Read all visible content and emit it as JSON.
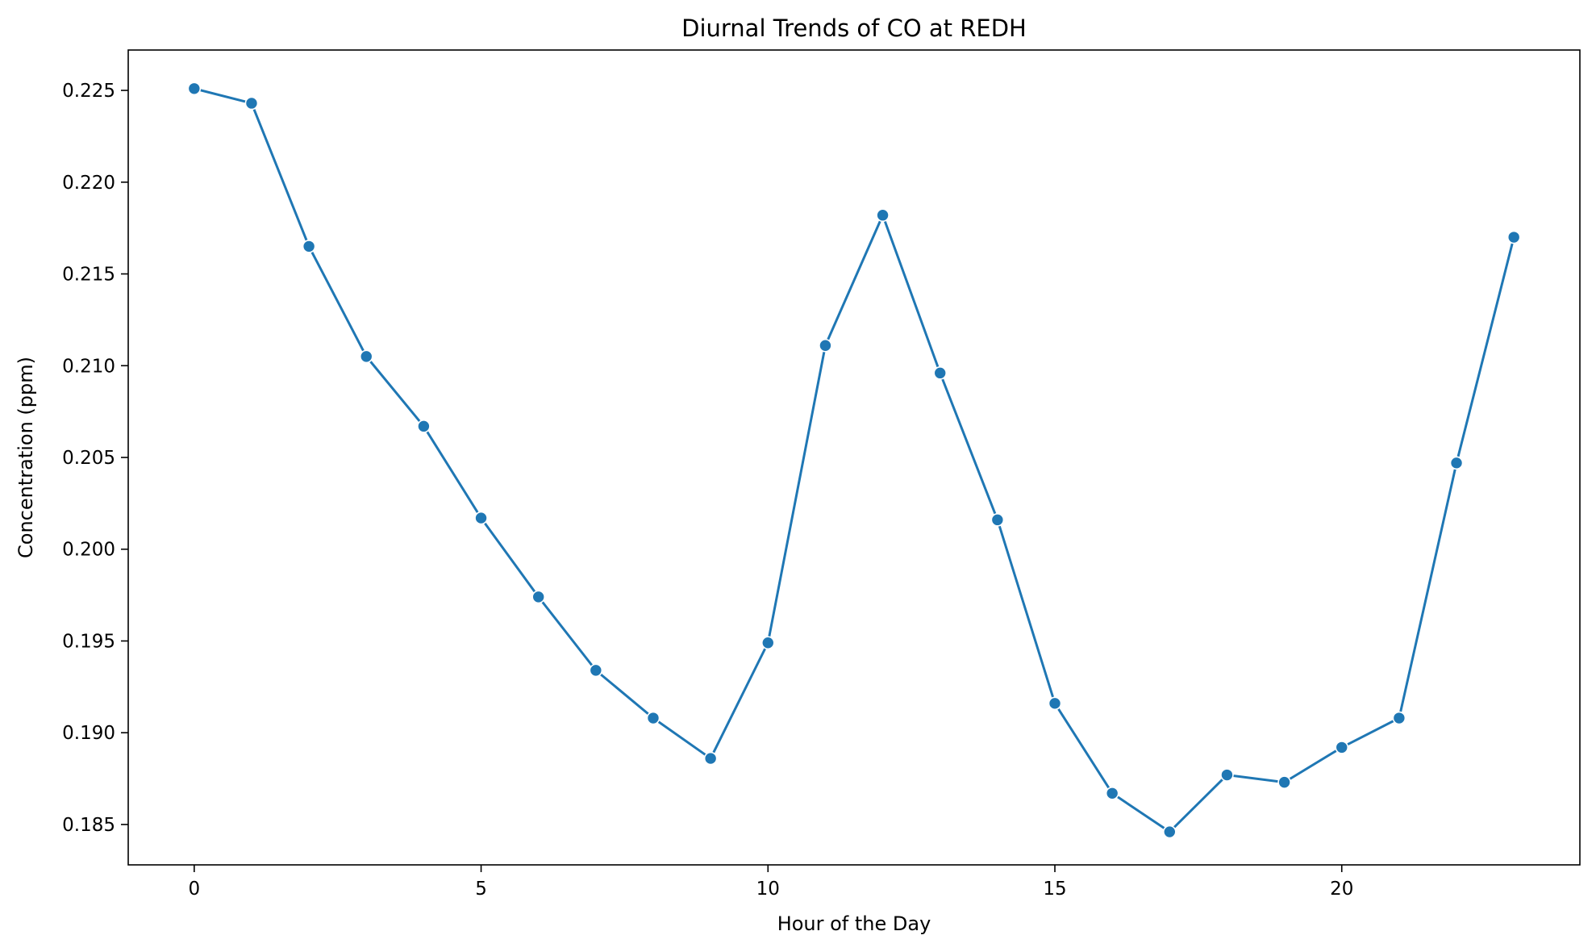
{
  "chart_data": {
    "type": "line",
    "title": "Diurnal Trends of CO at REDH",
    "xlabel": "Hour of the Day",
    "ylabel": "Concentration (ppm)",
    "x": [
      0,
      1,
      2,
      3,
      4,
      5,
      6,
      7,
      8,
      9,
      10,
      11,
      12,
      13,
      14,
      15,
      16,
      17,
      18,
      19,
      20,
      21,
      22,
      23
    ],
    "series": [
      {
        "values": [
          0.2251,
          0.2243,
          0.2165,
          0.2105,
          0.2067,
          0.2017,
          0.1974,
          0.1934,
          0.1908,
          0.1886,
          0.1949,
          0.2111,
          0.2182,
          0.2096,
          0.2016,
          0.1916,
          0.1867,
          0.1846,
          0.1877,
          0.1873,
          0.1892,
          0.1908,
          0.2047,
          0.217
        ],
        "color": "#1f77b4",
        "marker": "circle"
      }
    ],
    "xlim": [
      -1.15,
      24.15
    ],
    "ylim": [
      0.1828,
      0.2272
    ],
    "xticks": [
      0,
      5,
      10,
      15,
      20
    ],
    "xtick_labels": [
      "0",
      "5",
      "10",
      "15",
      "20"
    ],
    "yticks": [
      0.185,
      0.19,
      0.195,
      0.2,
      0.205,
      0.21,
      0.215,
      0.22,
      0.225
    ],
    "ytick_labels": [
      "0.185",
      "0.190",
      "0.195",
      "0.200",
      "0.205",
      "0.210",
      "0.215",
      "0.220",
      "0.225"
    ],
    "grid": false,
    "legend": false
  }
}
